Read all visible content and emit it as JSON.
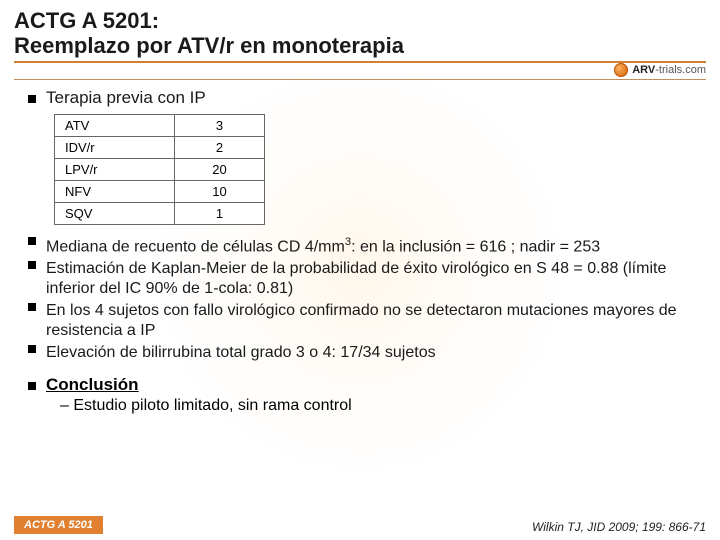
{
  "title_line1": "ACTG A 5201:",
  "title_line2": "Reemplazo por ATV/r en monoterapia",
  "logo_text_bold": "ARV",
  "logo_text_rest": "-trials.com",
  "section_heading": "Terapia previa con IP",
  "ip_table": {
    "rows": [
      {
        "name": "ATV",
        "value": "3"
      },
      {
        "name": "IDV/r",
        "value": "2"
      },
      {
        "name": "LPV/r",
        "value": "20"
      },
      {
        "name": "NFV",
        "value": "10"
      },
      {
        "name": "SQV",
        "value": "1"
      }
    ]
  },
  "bullets": [
    "Mediana de recuento de células CD 4/mm³: en la inclusión = 616 ; nadir = 253",
    "Estimación de Kaplan-Meier de la probabilidad de éxito virológico en S 48 = 0.88 (límite inferior del IC 90% de 1-cola: 0.81)",
    "En los 4 sujetos con fallo virológico confirmado no se detectaron mutaciones mayores de resistencia a IP",
    "Elevación de bilirrubina total grado 3 o 4: 17/34 sujetos"
  ],
  "conclusion_label": "Conclusión",
  "conclusion_item": "– Estudio piloto limitado, sin rama control",
  "badge": "ACTG A 5201",
  "citation": "Wilkin TJ, JID 2009; 199: 866-71",
  "colors": {
    "accent_orange": "#d08030",
    "badge_bg": "#e08030",
    "text": "#1a1a1a"
  }
}
